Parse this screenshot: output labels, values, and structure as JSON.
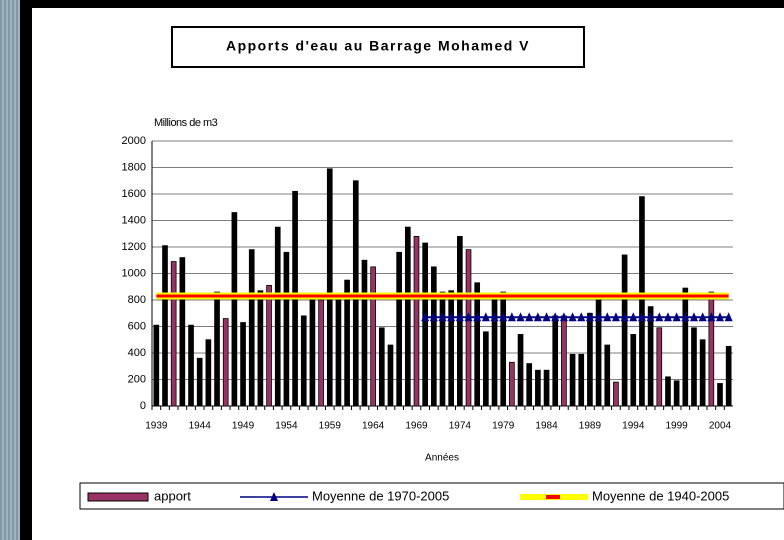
{
  "chart_data": {
    "type": "bar",
    "title": "Apports d'eau au Barrage Mohamed V",
    "y_label": "Millions de m3",
    "x_label": "Années",
    "categories": [
      "1939",
      null,
      null,
      null,
      null,
      "1944",
      null,
      null,
      null,
      null,
      "1949",
      null,
      null,
      null,
      null,
      "1954",
      null,
      null,
      null,
      null,
      "1959",
      null,
      null,
      null,
      null,
      "1964",
      null,
      null,
      null,
      null,
      "1969",
      null,
      null,
      null,
      null,
      "1974",
      null,
      null,
      null,
      null,
      "1979",
      null,
      null,
      null,
      null,
      "1984",
      null,
      null,
      null,
      null,
      "1989",
      null,
      null,
      null,
      null,
      "1994",
      null,
      null,
      null,
      null,
      "1999",
      null,
      null,
      null,
      null,
      "2004",
      null
    ],
    "series": [
      {
        "name": "apport",
        "type": "bar",
        "color": "#993366",
        "values": [
          610,
          1210,
          1090,
          1120,
          610,
          360,
          500,
          860,
          660,
          1460,
          630,
          1180,
          870,
          910,
          1350,
          1160,
          1620,
          680,
          800,
          800,
          1790,
          800,
          950,
          1700,
          1100,
          1050,
          590,
          460,
          1160,
          1350,
          1280,
          1230,
          1050,
          860,
          870,
          1280,
          1180,
          930,
          560,
          800,
          860,
          330,
          540,
          320,
          270,
          270,
          680,
          680,
          390,
          390,
          700,
          800,
          460,
          180,
          1140,
          540,
          1580,
          750,
          590,
          220,
          190,
          890,
          590,
          500,
          860,
          170,
          450
        ],
        "colors": [
          "#000000",
          "#000000",
          "#993366",
          "#000000",
          "#000000",
          "#000000",
          "#000000",
          "#000000",
          "#993366",
          "#000000",
          "#000000",
          "#000000",
          "#000000",
          "#993366",
          "#000000",
          "#000000",
          "#000000",
          "#000000",
          "#000000",
          "#993366",
          "#000000",
          "#000000",
          "#000000",
          "#000000",
          "#000000",
          "#993366",
          "#000000",
          "#000000",
          "#000000",
          "#000000",
          "#993366",
          "#000000",
          "#000000",
          "#000000",
          "#000000",
          "#000000",
          "#993366",
          "#000000",
          "#000000",
          "#000000",
          "#000000",
          "#993366",
          "#000000",
          "#000000",
          "#000000",
          "#000000",
          "#000000",
          "#993366",
          "#000000",
          "#000000",
          "#000000",
          "#000000",
          "#000000",
          "#993366",
          "#000000",
          "#000000",
          "#000000",
          "#000000",
          "#993366",
          "#000000",
          "#000000",
          "#000000",
          "#000000",
          "#000000",
          "#993366",
          "#000000",
          "#000000"
        ]
      },
      {
        "name": "Moyenne de 1970-2005",
        "type": "line",
        "color": "#000080",
        "marker": "triangle",
        "values": [
          null,
          null,
          null,
          null,
          null,
          null,
          null,
          null,
          null,
          null,
          null,
          null,
          null,
          null,
          null,
          null,
          null,
          null,
          null,
          null,
          null,
          null,
          null,
          null,
          null,
          null,
          null,
          null,
          null,
          null,
          null,
          670,
          670,
          670,
          670,
          670,
          670,
          670,
          670,
          670,
          670,
          670,
          670,
          670,
          670,
          670,
          670,
          670,
          670,
          670,
          670,
          670,
          670,
          670,
          670,
          670,
          670,
          670,
          670,
          670,
          670,
          670,
          670,
          670,
          670,
          670,
          670
        ]
      },
      {
        "name": "Moyenne de 1940-2005",
        "type": "line",
        "color": "#ff0000",
        "outline": "#ffff00",
        "values": [
          830,
          830,
          830,
          830,
          830,
          830,
          830,
          830,
          830,
          830,
          830,
          830,
          830,
          830,
          830,
          830,
          830,
          830,
          830,
          830,
          830,
          830,
          830,
          830,
          830,
          830,
          830,
          830,
          830,
          830,
          830,
          830,
          830,
          830,
          830,
          830,
          830,
          830,
          830,
          830,
          830,
          830,
          830,
          830,
          830,
          830,
          830,
          830,
          830,
          830,
          830,
          830,
          830,
          830,
          830,
          830,
          830,
          830,
          830,
          830,
          830,
          830,
          830,
          830,
          830,
          830,
          830
        ]
      }
    ],
    "ylim": [
      0,
      2000
    ],
    "yticks": [
      0,
      200,
      400,
      600,
      800,
      1000,
      1200,
      1400,
      1600,
      1800,
      2000
    ],
    "grid": true
  }
}
